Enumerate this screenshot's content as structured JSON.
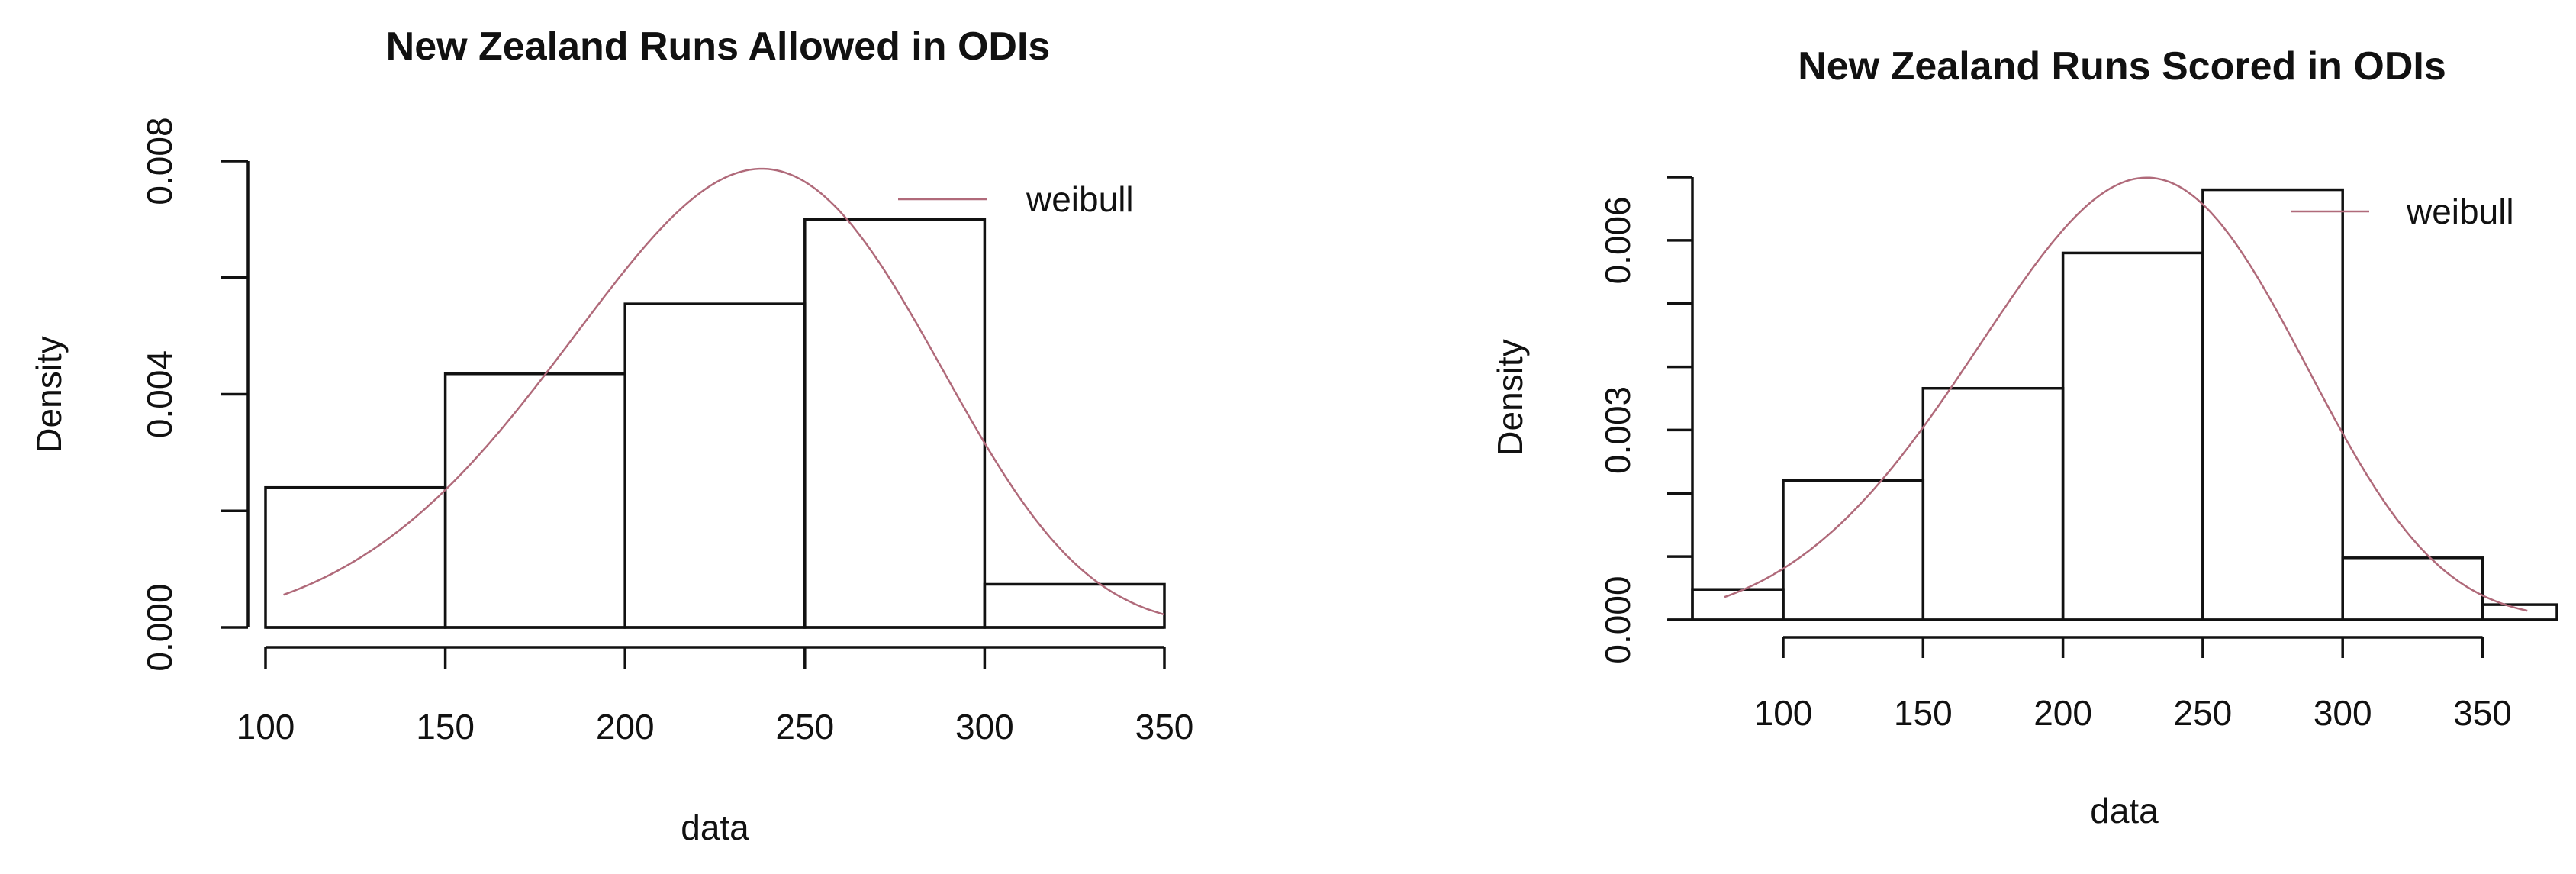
{
  "chart_data": [
    {
      "type": "bar",
      "subtype": "histogram",
      "title": "New Zealand Runs Allowed in ODIs",
      "xlabel": "data",
      "ylabel": "Density",
      "xlim": [
        100,
        350
      ],
      "ylim": [
        0,
        0.008
      ],
      "xticks": [
        "100",
        "150",
        "200",
        "250",
        "300",
        "350"
      ],
      "yticks": [
        "0.000",
        "0.004",
        "0.008"
      ],
      "ytick_values": [
        0,
        0.002,
        0.004,
        0.006,
        0.008
      ],
      "bins": [
        [
          100,
          150
        ],
        [
          150,
          200
        ],
        [
          200,
          250
        ],
        [
          250,
          300
        ],
        [
          300,
          350
        ]
      ],
      "values": [
        0.0024,
        0.00435,
        0.00555,
        0.007,
        0.00074
      ],
      "curve": {
        "name": "weibull",
        "distribution": "weibull",
        "shape": 5.2,
        "scale": 248,
        "x_range": [
          105,
          350
        ],
        "color": "#b06a7a"
      },
      "legend": {
        "label": "weibull",
        "placement": "top-right"
      },
      "grid": false
    },
    {
      "type": "bar",
      "subtype": "histogram",
      "title": "New Zealand Runs Scored in ODIs",
      "xlabel": "data",
      "ylabel": "Density",
      "xlim": [
        67.5,
        376.6
      ],
      "ylim": [
        0,
        0.007
      ],
      "xticks": [
        "100",
        "150",
        "200",
        "250",
        "300",
        "350"
      ],
      "yticks": [
        "0.000",
        "0.003",
        "0.006"
      ],
      "ytick_values": [
        0,
        0.001,
        0.002,
        0.003,
        0.004,
        0.005,
        0.006,
        0.007
      ],
      "bins": [
        [
          50,
          100
        ],
        [
          100,
          150
        ],
        [
          150,
          200
        ],
        [
          200,
          250
        ],
        [
          250,
          300
        ],
        [
          300,
          350
        ],
        [
          350,
          400
        ]
      ],
      "values": [
        0.00048,
        0.0022,
        0.00366,
        0.0058,
        0.0068,
        0.00098,
        0.00024
      ],
      "curve": {
        "name": "weibull",
        "distribution": "weibull",
        "shape": 4.5,
        "scale": 243.2,
        "x_range": [
          79,
          366
        ],
        "color": "#b06a7a"
      },
      "legend": {
        "label": "weibull",
        "placement": "top-right"
      },
      "grid": false
    }
  ]
}
